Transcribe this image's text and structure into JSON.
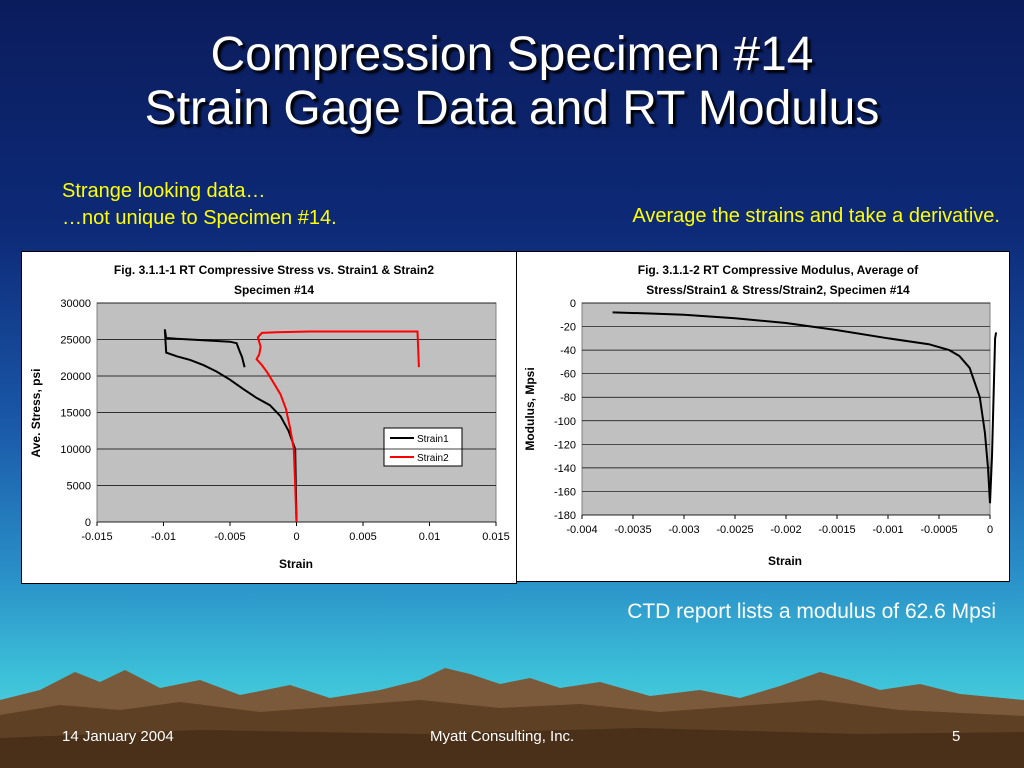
{
  "slide": {
    "title_line1": "Compression Specimen #14",
    "title_line2": "Strain Gage Data and RT Modulus",
    "note_left_line1": "Strange looking data…",
    "note_left_line2": "…not unique to Specimen #14.",
    "note_right": "Average the strains and take a derivative.",
    "note_bottom": "CTD report lists a modulus of 62.6 Mpsi",
    "footer_date": "14 January 2004",
    "footer_company": "Myatt Consulting, Inc.",
    "footer_page": "5"
  },
  "colors": {
    "title": "#ffffff",
    "notes": "#ffff00",
    "strain1": "#000000",
    "strain2": "#ff0000",
    "plot_bg": "#c0c0c0"
  },
  "chart_data": [
    {
      "type": "line",
      "title_line1": "Fig. 3.1.1-1 RT Compressive Stress vs. Strain1 & Strain2",
      "title_line2": "Specimen #14",
      "xlabel": "Strain",
      "ylabel": "Ave. Stress, psi",
      "xlim": [
        -0.015,
        0.015
      ],
      "ylim": [
        0,
        30000
      ],
      "xticks": [
        "-0.015",
        "-0.01",
        "-0.005",
        "0",
        "0.005",
        "0.01",
        "0.015"
      ],
      "yticks": [
        "0",
        "5000",
        "10000",
        "15000",
        "20000",
        "25000",
        "30000"
      ],
      "grid": true,
      "legend": "right",
      "series": [
        {
          "name": "Strain1",
          "color": "#000000",
          "points": [
            [
              0,
              0
            ],
            [
              -5e-05,
              5000
            ],
            [
              -0.0001,
              10000
            ],
            [
              -0.0003,
              11000
            ],
            [
              -0.0006,
              12500
            ],
            [
              -0.0012,
              14500
            ],
            [
              -0.002,
              16000
            ],
            [
              -0.003,
              17000
            ],
            [
              -0.004,
              18200
            ],
            [
              -0.005,
              19500
            ],
            [
              -0.006,
              20600
            ],
            [
              -0.007,
              21500
            ],
            [
              -0.008,
              22200
            ],
            [
              -0.009,
              22700
            ],
            [
              -0.0098,
              23200
            ],
            [
              -0.0099,
              26400
            ],
            [
              -0.0098,
              25200
            ],
            [
              -0.009,
              25100
            ],
            [
              -0.008,
              25000
            ],
            [
              -0.007,
              24900
            ],
            [
              -0.006,
              24800
            ],
            [
              -0.005,
              24700
            ],
            [
              -0.0045,
              24500
            ],
            [
              -0.0043,
              23500
            ],
            [
              -0.0041,
              22600
            ],
            [
              -0.0039,
              21200
            ]
          ]
        },
        {
          "name": "Strain2",
          "color": "#ff0000",
          "points": [
            [
              0,
              0
            ],
            [
              -0.0001,
              5000
            ],
            [
              -0.0002,
              10000
            ],
            [
              -0.0005,
              13000
            ],
            [
              -0.0008,
              15500
            ],
            [
              -0.0012,
              17500
            ],
            [
              -0.0017,
              19000
            ],
            [
              -0.0022,
              20500
            ],
            [
              -0.0026,
              21500
            ],
            [
              -0.003,
              22300
            ],
            [
              -0.0028,
              23000
            ],
            [
              -0.0027,
              24000
            ],
            [
              -0.0029,
              25300
            ],
            [
              -0.0026,
              25900
            ],
            [
              -0.0015,
              26000
            ],
            [
              0.001,
              26100
            ],
            [
              0.005,
              26100
            ],
            [
              0.0091,
              26100
            ],
            [
              0.0092,
              21200
            ]
          ]
        }
      ]
    },
    {
      "type": "line",
      "title_line1": "Fig. 3.1.1-2 RT Compressive Modulus, Average of",
      "title_line2": "Stress/Strain1 & Stress/Strain2, Specimen #14",
      "xlabel": "Strain",
      "ylabel": "Modulus, Mpsi",
      "xlim": [
        -0.004,
        0
      ],
      "ylim": [
        -180,
        0
      ],
      "xticks": [
        "-0.004",
        "-0.0035",
        "-0.003",
        "-0.0025",
        "-0.002",
        "-0.0015",
        "-0.001",
        "-0.0005",
        "0"
      ],
      "yticks": [
        "-180",
        "-160",
        "-140",
        "-120",
        "-100",
        "-80",
        "-60",
        "-40",
        "-20",
        "0"
      ],
      "grid": true,
      "series": [
        {
          "name": "",
          "color": "#000000",
          "points": [
            [
              -0.0037,
              -8
            ],
            [
              -0.0033,
              -9
            ],
            [
              -0.003,
              -10
            ],
            [
              -0.0025,
              -13
            ],
            [
              -0.002,
              -17
            ],
            [
              -0.0015,
              -23
            ],
            [
              -0.001,
              -30
            ],
            [
              -0.0006,
              -35
            ],
            [
              -0.0004,
              -40
            ],
            [
              -0.0003,
              -45
            ],
            [
              -0.0002,
              -55
            ],
            [
              -0.0001,
              -80
            ],
            [
              -5e-05,
              -110
            ],
            [
              -2e-05,
              -140
            ],
            [
              0,
              -170
            ],
            [
              2e-05,
              -130
            ],
            [
              5e-05,
              -30
            ],
            [
              6e-05,
              -25
            ]
          ]
        }
      ]
    }
  ]
}
